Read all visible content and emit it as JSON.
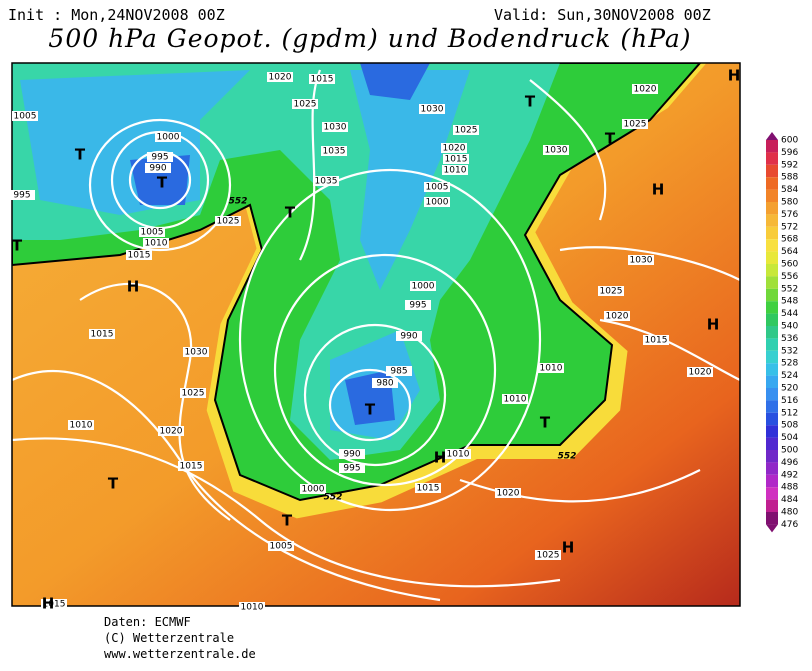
{
  "header": {
    "init": "Init : Mon,24NOV2008 00Z",
    "valid": "Valid: Sun,30NOV2008 00Z",
    "title": "500 hPa Geopot. (gpdm) und Bodendruck (hPa)"
  },
  "colorbar": {
    "labels": [
      600,
      596,
      592,
      588,
      584,
      580,
      576,
      572,
      568,
      564,
      560,
      556,
      552,
      548,
      544,
      540,
      536,
      532,
      528,
      524,
      520,
      516,
      512,
      508,
      504,
      500,
      496,
      492,
      488,
      484,
      480,
      476
    ]
  },
  "map": {
    "isobar_labels": [
      1020,
      1015,
      1005,
      1025,
      1030,
      1030,
      1025,
      1000,
      1035,
      995,
      1020,
      1015,
      1010,
      990,
      1035,
      1005,
      1000,
      995,
      1025,
      1005,
      1010,
      1015,
      1030,
      1020,
      1025,
      1030,
      1000,
      995,
      1025,
      1020,
      990,
      1030,
      1015,
      985,
      980,
      1010,
      1020,
      1015,
      1025,
      1010,
      1010,
      1020,
      990,
      995,
      1010,
      1015,
      1000,
      1015,
      1020,
      1005,
      1025,
      1010,
      1015
    ],
    "contour_labels": [
      552,
      552,
      552
    ],
    "pressure_centers": [
      "H",
      "T",
      "T",
      "T",
      "T",
      "T",
      "H",
      "T",
      "H",
      "H",
      "T",
      "T",
      "H",
      "T",
      "T",
      "H",
      "H"
    ]
  },
  "footer": {
    "lines": [
      "Daten: ECMWF",
      "(C) Wetterzentrale",
      "www.wetterzentrale.de"
    ]
  }
}
